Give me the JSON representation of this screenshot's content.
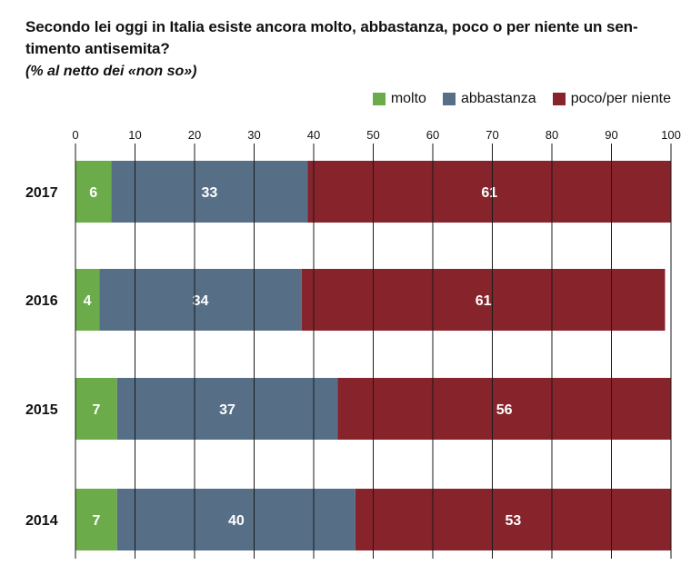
{
  "title": "Secondo lei oggi in Italia esiste ancora molto, abbastanza, poco o per niente un sen-timento antisemita?",
  "subtitle": "(% al netto dei «non so»)",
  "legend": [
    {
      "label": "molto",
      "color": "#6bab4a"
    },
    {
      "label": "abbastanza",
      "color": "#566f87"
    },
    {
      "label": "poco/per niente",
      "color": "#86232b"
    }
  ],
  "chart_data": {
    "type": "bar",
    "orientation": "horizontal",
    "stacked": true,
    "categories": [
      "2017",
      "2016",
      "2015",
      "2014"
    ],
    "series": [
      {
        "name": "molto",
        "values": [
          6,
          4,
          7,
          7
        ],
        "color": "#6bab4a"
      },
      {
        "name": "abbastanza",
        "values": [
          33,
          34,
          37,
          40
        ],
        "color": "#566f87"
      },
      {
        "name": "poco/per niente",
        "values": [
          61,
          61,
          56,
          53
        ],
        "color": "#86232b"
      }
    ],
    "xlim": [
      0,
      100
    ],
    "xticks": [
      0,
      10,
      20,
      30,
      40,
      50,
      60,
      70,
      80,
      90,
      100
    ],
    "grid": true,
    "legend_position": "top-right"
  }
}
